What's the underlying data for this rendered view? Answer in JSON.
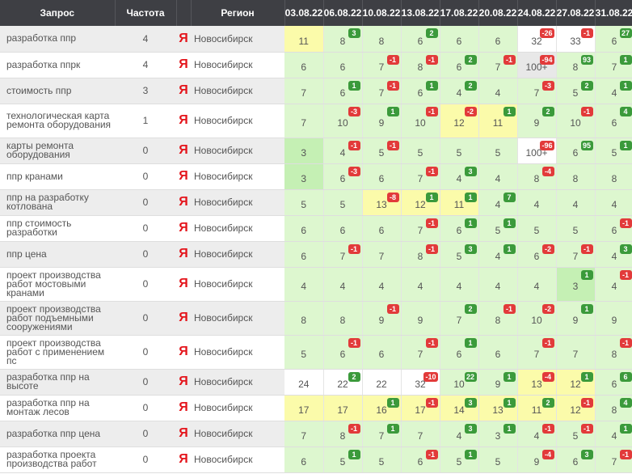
{
  "header": {
    "query": "Запрос",
    "frequency": "Частота",
    "region": "Регион",
    "dates": [
      "03.08.22",
      "06.08.22",
      "10.08.22",
      "13.08.22",
      "17.08.22",
      "20.08.22",
      "24.08.22",
      "27.08.22",
      "31.08.22"
    ]
  },
  "engine_glyph": "Я",
  "colors": {
    "header_bg": "#3e3f44",
    "up": "#3b9a3b",
    "down": "#e23a3a",
    "green": "#ddf7cf",
    "yellow": "#fbfbaa"
  },
  "rows": [
    {
      "query": "разработка ппр",
      "freq": "4",
      "region": "Новосибирск",
      "cells": [
        {
          "v": "11",
          "bg": "y2"
        },
        {
          "v": "8",
          "bg": "g",
          "b": "3",
          "d": "up"
        },
        {
          "v": "8",
          "bg": "g"
        },
        {
          "v": "6",
          "bg": "g",
          "b": "2",
          "d": "up"
        },
        {
          "v": "6",
          "bg": "g"
        },
        {
          "v": "6",
          "bg": "g"
        },
        {
          "v": "32",
          "bg": "w",
          "b": "-26",
          "d": "dn"
        },
        {
          "v": "33",
          "bg": "w",
          "b": "-1",
          "d": "dn"
        },
        {
          "v": "6",
          "bg": "g",
          "b": "27",
          "d": "up"
        }
      ]
    },
    {
      "query": "разработка ппрк",
      "freq": "4",
      "region": "Новосибирск",
      "cells": [
        {
          "v": "6",
          "bg": "g"
        },
        {
          "v": "6",
          "bg": "g"
        },
        {
          "v": "7",
          "bg": "g",
          "b": "-1",
          "d": "dn"
        },
        {
          "v": "8",
          "bg": "g",
          "b": "-1",
          "d": "dn"
        },
        {
          "v": "6",
          "bg": "g",
          "b": "2",
          "d": "up"
        },
        {
          "v": "7",
          "bg": "g",
          "b": "-1",
          "d": "dn"
        },
        {
          "v": "100+",
          "bg": "gr",
          "b": "-94",
          "d": "dn"
        },
        {
          "v": "8",
          "bg": "g",
          "b": "93",
          "d": "up"
        },
        {
          "v": "7",
          "bg": "g",
          "b": "1",
          "d": "up"
        }
      ]
    },
    {
      "query": "стоимость ппр",
      "freq": "3",
      "region": "Новосибирск",
      "cells": [
        {
          "v": "7",
          "bg": "g"
        },
        {
          "v": "6",
          "bg": "g",
          "b": "1",
          "d": "up"
        },
        {
          "v": "7",
          "bg": "g",
          "b": "-1",
          "d": "dn"
        },
        {
          "v": "6",
          "bg": "g",
          "b": "1",
          "d": "up"
        },
        {
          "v": "4",
          "bg": "g",
          "b": "2",
          "d": "up"
        },
        {
          "v": "4",
          "bg": "g"
        },
        {
          "v": "7",
          "bg": "g",
          "b": "-3",
          "d": "dn"
        },
        {
          "v": "5",
          "bg": "g",
          "b": "2",
          "d": "up"
        },
        {
          "v": "4",
          "bg": "g",
          "b": "1",
          "d": "up"
        }
      ]
    },
    {
      "query": "технологическая карта ремонта оборудования",
      "freq": "1",
      "region": "Новосибирск",
      "cells": [
        {
          "v": "7",
          "bg": "g"
        },
        {
          "v": "10",
          "bg": "g",
          "b": "-3",
          "d": "dn"
        },
        {
          "v": "9",
          "bg": "g",
          "b": "1",
          "d": "up"
        },
        {
          "v": "10",
          "bg": "g",
          "b": "-1",
          "d": "dn"
        },
        {
          "v": "12",
          "bg": "y2",
          "b": "-2",
          "d": "dn"
        },
        {
          "v": "11",
          "bg": "y2",
          "b": "1",
          "d": "up"
        },
        {
          "v": "9",
          "bg": "g",
          "b": "2",
          "d": "up"
        },
        {
          "v": "10",
          "bg": "g",
          "b": "-1",
          "d": "dn"
        },
        {
          "v": "6",
          "bg": "g",
          "b": "4",
          "d": "up"
        }
      ]
    },
    {
      "query": "карты ремонта оборудования",
      "freq": "0",
      "region": "Новосибирск",
      "cells": [
        {
          "v": "3",
          "bg": "gd"
        },
        {
          "v": "4",
          "bg": "g",
          "b": "-1",
          "d": "dn"
        },
        {
          "v": "5",
          "bg": "g",
          "b": "-1",
          "d": "dn"
        },
        {
          "v": "5",
          "bg": "g"
        },
        {
          "v": "5",
          "bg": "g"
        },
        {
          "v": "5",
          "bg": "g"
        },
        {
          "v": "100+",
          "bg": "w",
          "b": "-96",
          "d": "dn"
        },
        {
          "v": "6",
          "bg": "g",
          "b": "95",
          "d": "up"
        },
        {
          "v": "5",
          "bg": "g",
          "b": "1",
          "d": "up"
        }
      ]
    },
    {
      "query": "ппр кранами",
      "freq": "0",
      "region": "Новосибирск",
      "cells": [
        {
          "v": "3",
          "bg": "gd"
        },
        {
          "v": "6",
          "bg": "g",
          "b": "-3",
          "d": "dn"
        },
        {
          "v": "6",
          "bg": "g"
        },
        {
          "v": "7",
          "bg": "g",
          "b": "-1",
          "d": "dn"
        },
        {
          "v": "4",
          "bg": "g",
          "b": "3",
          "d": "up"
        },
        {
          "v": "4",
          "bg": "g"
        },
        {
          "v": "8",
          "bg": "g",
          "b": "-4",
          "d": "dn"
        },
        {
          "v": "8",
          "bg": "g"
        },
        {
          "v": "8",
          "bg": "g"
        }
      ]
    },
    {
      "query": "ппр на разработку котлована",
      "freq": "0",
      "region": "Новосибирск",
      "cells": [
        {
          "v": "5",
          "bg": "g"
        },
        {
          "v": "5",
          "bg": "g"
        },
        {
          "v": "13",
          "bg": "y2",
          "b": "-8",
          "d": "dn"
        },
        {
          "v": "12",
          "bg": "y2",
          "b": "1",
          "d": "up"
        },
        {
          "v": "11",
          "bg": "y2",
          "b": "1",
          "d": "up"
        },
        {
          "v": "4",
          "bg": "g",
          "b": "7",
          "d": "up"
        },
        {
          "v": "4",
          "bg": "g"
        },
        {
          "v": "4",
          "bg": "g"
        },
        {
          "v": "4",
          "bg": "g"
        }
      ]
    },
    {
      "query": "ппр стоимость разработки",
      "freq": "0",
      "region": "Новосибирск",
      "cells": [
        {
          "v": "6",
          "bg": "g"
        },
        {
          "v": "6",
          "bg": "g"
        },
        {
          "v": "6",
          "bg": "g"
        },
        {
          "v": "7",
          "bg": "g",
          "b": "-1",
          "d": "dn"
        },
        {
          "v": "6",
          "bg": "g",
          "b": "1",
          "d": "up"
        },
        {
          "v": "5",
          "bg": "g",
          "b": "1",
          "d": "up"
        },
        {
          "v": "5",
          "bg": "g"
        },
        {
          "v": "5",
          "bg": "g"
        },
        {
          "v": "6",
          "bg": "g",
          "b": "-1",
          "d": "dn"
        }
      ]
    },
    {
      "query": "ппр цена",
      "freq": "0",
      "region": "Новосибирск",
      "cells": [
        {
          "v": "6",
          "bg": "g"
        },
        {
          "v": "7",
          "bg": "g",
          "b": "-1",
          "d": "dn"
        },
        {
          "v": "7",
          "bg": "g"
        },
        {
          "v": "8",
          "bg": "g",
          "b": "-1",
          "d": "dn"
        },
        {
          "v": "5",
          "bg": "g",
          "b": "3",
          "d": "up"
        },
        {
          "v": "4",
          "bg": "g",
          "b": "1",
          "d": "up"
        },
        {
          "v": "6",
          "bg": "g",
          "b": "-2",
          "d": "dn"
        },
        {
          "v": "7",
          "bg": "g",
          "b": "-1",
          "d": "dn"
        },
        {
          "v": "4",
          "bg": "g",
          "b": "3",
          "d": "up"
        }
      ]
    },
    {
      "query": "проект производства работ мостовыми кранами",
      "freq": "0",
      "region": "Новосибирск",
      "cells": [
        {
          "v": "4",
          "bg": "g"
        },
        {
          "v": "4",
          "bg": "g"
        },
        {
          "v": "4",
          "bg": "g"
        },
        {
          "v": "4",
          "bg": "g"
        },
        {
          "v": "4",
          "bg": "g"
        },
        {
          "v": "4",
          "bg": "g"
        },
        {
          "v": "4",
          "bg": "g"
        },
        {
          "v": "3",
          "bg": "gd",
          "b": "1",
          "d": "up"
        },
        {
          "v": "4",
          "bg": "g",
          "b": "-1",
          "d": "dn"
        }
      ]
    },
    {
      "query": "проект производства работ подъемными сооружениями",
      "freq": "0",
      "region": "Новосибирск",
      "cells": [
        {
          "v": "8",
          "bg": "g"
        },
        {
          "v": "8",
          "bg": "g"
        },
        {
          "v": "9",
          "bg": "g",
          "b": "-1",
          "d": "dn"
        },
        {
          "v": "9",
          "bg": "g"
        },
        {
          "v": "7",
          "bg": "g",
          "b": "2",
          "d": "up"
        },
        {
          "v": "8",
          "bg": "g",
          "b": "-1",
          "d": "dn"
        },
        {
          "v": "10",
          "bg": "g",
          "b": "-2",
          "d": "dn"
        },
        {
          "v": "9",
          "bg": "g",
          "b": "1",
          "d": "up"
        },
        {
          "v": "9",
          "bg": "g"
        }
      ]
    },
    {
      "query": "проект производства работ с применением пс",
      "freq": "0",
      "region": "Новосибирск",
      "cells": [
        {
          "v": "5",
          "bg": "g"
        },
        {
          "v": "6",
          "bg": "g",
          "b": "-1",
          "d": "dn"
        },
        {
          "v": "6",
          "bg": "g"
        },
        {
          "v": "7",
          "bg": "g",
          "b": "-1",
          "d": "dn"
        },
        {
          "v": "6",
          "bg": "g",
          "b": "1",
          "d": "up"
        },
        {
          "v": "6",
          "bg": "g"
        },
        {
          "v": "7",
          "bg": "g",
          "b": "-1",
          "d": "dn"
        },
        {
          "v": "7",
          "bg": "g"
        },
        {
          "v": "8",
          "bg": "g",
          "b": "-1",
          "d": "dn"
        }
      ]
    },
    {
      "query": "разработка ппр на высоте",
      "freq": "0",
      "region": "Новосибирск",
      "cells": [
        {
          "v": "24",
          "bg": "w"
        },
        {
          "v": "22",
          "bg": "w",
          "b": "2",
          "d": "up"
        },
        {
          "v": "22",
          "bg": "w"
        },
        {
          "v": "32",
          "bg": "w",
          "b": "-10",
          "d": "dn"
        },
        {
          "v": "10",
          "bg": "g",
          "b": "22",
          "d": "up"
        },
        {
          "v": "9",
          "bg": "g",
          "b": "1",
          "d": "up"
        },
        {
          "v": "13",
          "bg": "y2",
          "b": "-4",
          "d": "dn"
        },
        {
          "v": "12",
          "bg": "y2",
          "b": "1",
          "d": "up"
        },
        {
          "v": "6",
          "bg": "g",
          "b": "6",
          "d": "up"
        }
      ]
    },
    {
      "query": "разработка ппр на монтаж лесов",
      "freq": "0",
      "region": "Новосибирск",
      "cells": [
        {
          "v": "17",
          "bg": "y2"
        },
        {
          "v": "17",
          "bg": "y2"
        },
        {
          "v": "16",
          "bg": "y2",
          "b": "1",
          "d": "up"
        },
        {
          "v": "17",
          "bg": "y2",
          "b": "-1",
          "d": "dn"
        },
        {
          "v": "14",
          "bg": "y2",
          "b": "3",
          "d": "up"
        },
        {
          "v": "13",
          "bg": "y2",
          "b": "1",
          "d": "up"
        },
        {
          "v": "11",
          "bg": "y2",
          "b": "2",
          "d": "up"
        },
        {
          "v": "12",
          "bg": "y2",
          "b": "-1",
          "d": "dn"
        },
        {
          "v": "8",
          "bg": "g",
          "b": "4",
          "d": "up"
        }
      ]
    },
    {
      "query": "разработка ппр цена",
      "freq": "0",
      "region": "Новосибирск",
      "cells": [
        {
          "v": "7",
          "bg": "g"
        },
        {
          "v": "8",
          "bg": "g",
          "b": "-1",
          "d": "dn"
        },
        {
          "v": "7",
          "bg": "g",
          "b": "1",
          "d": "up"
        },
        {
          "v": "7",
          "bg": "g"
        },
        {
          "v": "4",
          "bg": "g",
          "b": "3",
          "d": "up"
        },
        {
          "v": "3",
          "bg": "g",
          "b": "1",
          "d": "up"
        },
        {
          "v": "4",
          "bg": "g",
          "b": "-1",
          "d": "dn"
        },
        {
          "v": "5",
          "bg": "g",
          "b": "-1",
          "d": "dn"
        },
        {
          "v": "4",
          "bg": "g",
          "b": "1",
          "d": "up"
        }
      ]
    },
    {
      "query": "разработка проекта производства работ",
      "freq": "0",
      "region": "Новосибирск",
      "cells": [
        {
          "v": "6",
          "bg": "g"
        },
        {
          "v": "5",
          "bg": "g",
          "b": "1",
          "d": "up"
        },
        {
          "v": "5",
          "bg": "g"
        },
        {
          "v": "6",
          "bg": "g",
          "b": "-1",
          "d": "dn"
        },
        {
          "v": "5",
          "bg": "g",
          "b": "1",
          "d": "up"
        },
        {
          "v": "5",
          "bg": "g"
        },
        {
          "v": "9",
          "bg": "g",
          "b": "-4",
          "d": "dn"
        },
        {
          "v": "6",
          "bg": "g",
          "b": "3",
          "d": "up"
        },
        {
          "v": "7",
          "bg": "g",
          "b": "-1",
          "d": "dn"
        }
      ]
    }
  ]
}
